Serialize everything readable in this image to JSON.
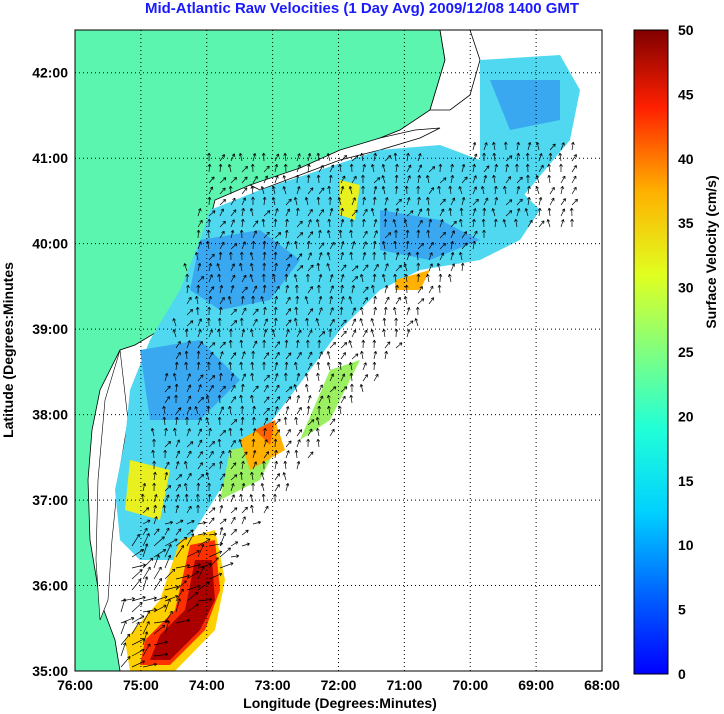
{
  "title": "Mid-Atlantic Raw Velocities (1 Day Avg) 2009/12/08 1400 GMT",
  "title_color": "#1a1aff",
  "land_color": "#5cf5b0",
  "chart_data": {
    "type": "map",
    "xlabel": "Longitude (Degrees:Minutes)",
    "ylabel": "Latitude (Degrees:Minutes",
    "x_ticks": [
      "76:00",
      "75:00",
      "74:00",
      "73:00",
      "72:00",
      "71:00",
      "70:00",
      "69:00",
      "68:00"
    ],
    "y_ticks": [
      "35:00",
      "36:00",
      "37:00",
      "38:00",
      "39:00",
      "40:00",
      "41:00",
      "42:00"
    ],
    "x_range": [
      -76,
      -68
    ],
    "y_range": [
      35,
      42.5
    ],
    "grid": true,
    "colorbar": {
      "label": "Surface Velocity (cm/s)",
      "range": [
        0,
        50
      ],
      "ticks": [
        "0",
        "5",
        "10",
        "15",
        "20",
        "25",
        "30",
        "35",
        "40",
        "45",
        "50"
      ],
      "colormap": "jet"
    }
  }
}
